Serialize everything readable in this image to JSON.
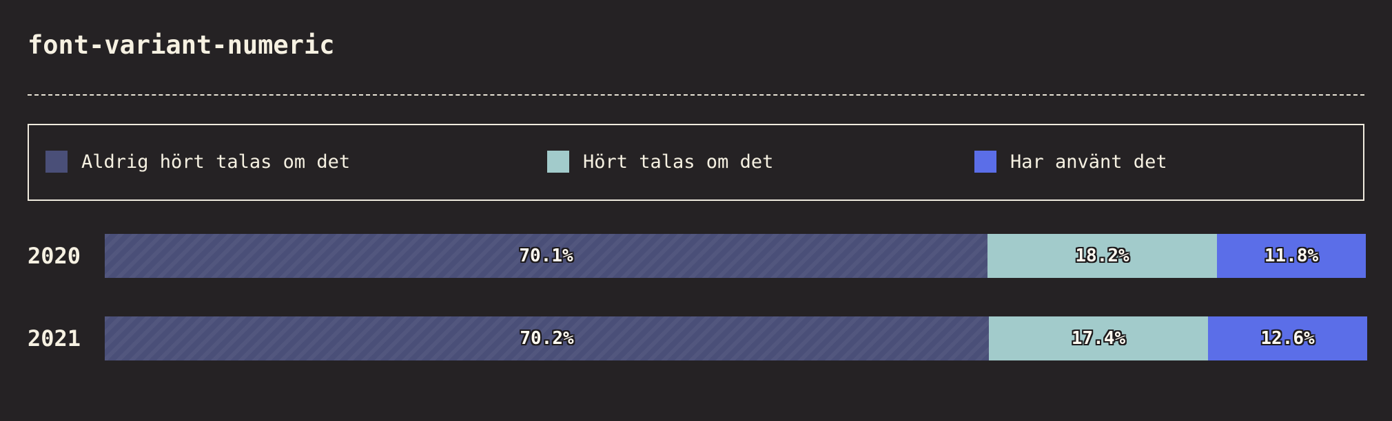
{
  "title": "font-variant-numeric",
  "legend": {
    "items": [
      {
        "label": "Aldrig hört talas om det",
        "color": "#4a4f78"
      },
      {
        "label": "Hört talas om det",
        "color": "#a2cbcb"
      },
      {
        "label": "Har använt det",
        "color": "#5b6ee8"
      }
    ]
  },
  "chart_data": {
    "type": "bar",
    "orientation": "horizontal",
    "stacked": true,
    "normalized": true,
    "categories": [
      "2020",
      "2021"
    ],
    "series": [
      {
        "name": "Aldrig hört talas om det",
        "values": [
          70.1,
          70.2
        ],
        "labels": [
          "70.1%",
          "70.2%"
        ],
        "color": "#4a4f78",
        "pattern": "diagonal-stripes"
      },
      {
        "name": "Hört talas om det",
        "values": [
          18.2,
          17.4
        ],
        "labels": [
          "18.2%",
          "17.4%"
        ],
        "color": "#a2cbcb"
      },
      {
        "name": "Har använt det",
        "values": [
          11.8,
          12.6
        ],
        "labels": [
          "11.8%",
          "12.6%"
        ],
        "color": "#5b6ee8"
      }
    ],
    "xlim": [
      0,
      100
    ],
    "legend_position": "top",
    "grid": false
  }
}
